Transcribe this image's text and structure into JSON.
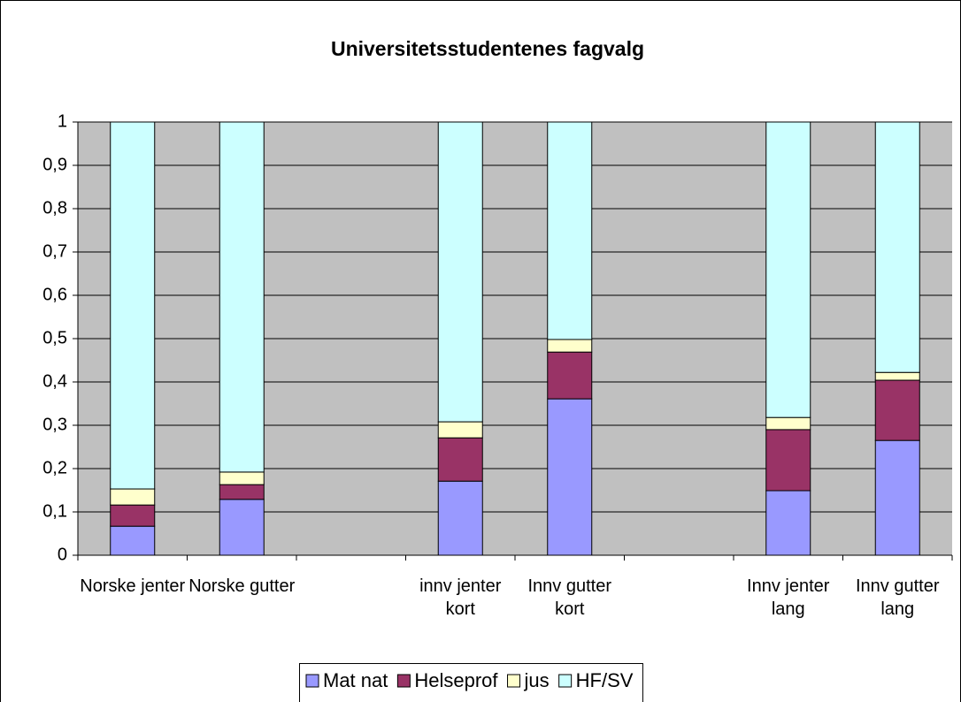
{
  "chart_data": {
    "type": "stacked-bar",
    "title": "Universitetsstudentenes fagvalg",
    "categories": [
      "Norske jenter",
      "Norske gutter",
      null,
      "innv jenter kort",
      "Innv gutter kort",
      null,
      "Innv jenter lang",
      "Innv gutter lang"
    ],
    "series": [
      {
        "name": "Mat nat",
        "color": "#9999ff",
        "values": [
          0.067,
          0.129,
          null,
          0.171,
          0.361,
          null,
          0.149,
          0.265
        ]
      },
      {
        "name": "Helseprof",
        "color": "#993366",
        "values": [
          0.049,
          0.034,
          null,
          0.1,
          0.108,
          null,
          0.141,
          0.139
        ]
      },
      {
        "name": "jus",
        "color": "#ffffcc",
        "values": [
          0.037,
          0.029,
          null,
          0.037,
          0.029,
          null,
          0.028,
          0.018
        ]
      },
      {
        "name": "HF/SV",
        "color": "#ccffff",
        "values": [
          0.847,
          0.808,
          null,
          0.692,
          0.502,
          null,
          0.682,
          0.578
        ]
      }
    ],
    "ylim": [
      0,
      1
    ],
    "yticks": [
      0,
      {
        "value": 0.1,
        "label": "0,1"
      },
      {
        "value": 0.2,
        "label": "0,2"
      },
      {
        "value": 0.3,
        "label": "0,3"
      },
      {
        "value": 0.4,
        "label": "0,4"
      },
      {
        "value": 0.5,
        "label": "0,5"
      },
      {
        "value": 0.6,
        "label": "0,6"
      },
      {
        "value": 0.7,
        "label": "0,7"
      },
      {
        "value": 0.8,
        "label": "0,8"
      },
      {
        "value": 0.9,
        "label": "0,9"
      },
      1
    ],
    "grid": true,
    "plot_background": "#c0c0c0",
    "legend": "bottom"
  }
}
